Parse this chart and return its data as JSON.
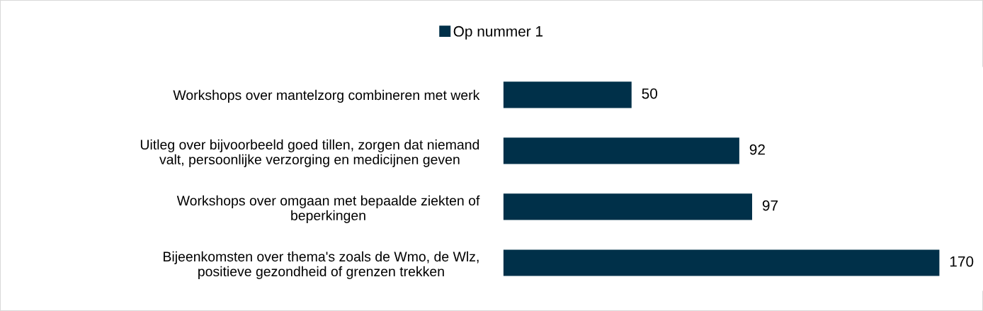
{
  "chart_data": {
    "type": "bar",
    "orientation": "horizontal",
    "categories": [
      "Workshops over mantelzorg combineren met werk",
      "Uitleg over bijvoorbeeld goed tillen, zorgen dat niemand\nvalt, persoonlijke verzorging en medicijnen geven",
      "Workshops over omgaan met bepaalde ziekten of\nbeperkingen",
      "Bijeenkomsten over thema's zoals de Wmo, de Wlz,\npositieve gezondheid of grenzen trekken"
    ],
    "series": [
      {
        "name": "Op nummer 1",
        "color": "#003049",
        "values": [
          50,
          92,
          97,
          170
        ]
      }
    ],
    "data_labels": true,
    "legend": "top",
    "grid": false
  }
}
